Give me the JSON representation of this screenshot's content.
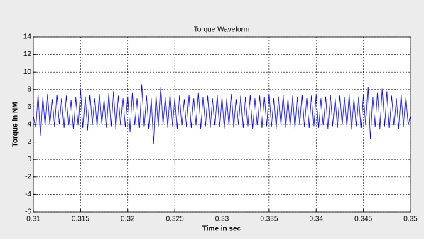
{
  "chart_data": {
    "type": "line",
    "title": "Torque Waveform",
    "x_label": "Time in sec",
    "y_label": "Torque in NM",
    "x": [
      0.31,
      0.31025,
      0.3105,
      0.31075,
      0.311,
      0.31125,
      0.3115,
      0.31175,
      0.312,
      0.31225,
      0.3125,
      0.31275,
      0.313,
      0.31325,
      0.3135,
      0.31375,
      0.314,
      0.31425,
      0.3145,
      0.31475,
      0.315,
      0.31525,
      0.3155,
      0.31575,
      0.316,
      0.31625,
      0.3165,
      0.31675,
      0.317,
      0.31725,
      0.3175,
      0.31775,
      0.318,
      0.31825,
      0.3185,
      0.31875,
      0.319,
      0.31925,
      0.3195,
      0.31975,
      0.32,
      0.32025,
      0.3205,
      0.32075,
      0.321,
      0.32125,
      0.3215,
      0.32175,
      0.322,
      0.32225,
      0.3225,
      0.32275,
      0.323,
      0.32325,
      0.3235,
      0.32375,
      0.324,
      0.32425,
      0.3245,
      0.32475,
      0.325,
      0.32525,
      0.3255,
      0.32575,
      0.326,
      0.32625,
      0.3265,
      0.32675,
      0.327,
      0.32725,
      0.3275,
      0.32775,
      0.328,
      0.32825,
      0.3285,
      0.32875,
      0.329,
      0.32925,
      0.3295,
      0.32975,
      0.33,
      0.33025,
      0.3305,
      0.33075,
      0.331,
      0.33125,
      0.3315,
      0.33175,
      0.332,
      0.33225,
      0.3325,
      0.33275,
      0.333,
      0.33325,
      0.3335,
      0.33375,
      0.334,
      0.33425,
      0.3345,
      0.33475,
      0.335,
      0.33525,
      0.3355,
      0.33575,
      0.336,
      0.33625,
      0.3365,
      0.33675,
      0.337,
      0.33725,
      0.3375,
      0.33775,
      0.338,
      0.33825,
      0.3385,
      0.33875,
      0.339,
      0.33925,
      0.3395,
      0.33975,
      0.34,
      0.34025,
      0.3405,
      0.34075,
      0.341,
      0.34125,
      0.3415,
      0.34175,
      0.342,
      0.34225,
      0.3425,
      0.34275,
      0.343,
      0.34325,
      0.3435,
      0.34375,
      0.344,
      0.34425,
      0.3445,
      0.34475,
      0.345,
      0.34525,
      0.3455,
      0.34575,
      0.346,
      0.34625,
      0.3465,
      0.34675,
      0.347,
      0.34725,
      0.3475,
      0.34775,
      0.348,
      0.34825,
      0.3485,
      0.34875,
      0.349,
      0.34925,
      0.3495,
      0.34975,
      0.35
    ],
    "series": [
      {
        "color": "#0000ff",
        "values": [
          5.0,
          3.6,
          7.6,
          2.7,
          7.2,
          3.8,
          7.5,
          3.9,
          6.9,
          3.7,
          7.4,
          4.0,
          7.0,
          3.6,
          7.3,
          3.9,
          6.8,
          3.5,
          7.1,
          3.9,
          8.0,
          3.6,
          7.2,
          3.3,
          7.4,
          3.9,
          7.0,
          3.7,
          7.5,
          4.0,
          6.9,
          3.6,
          7.6,
          3.8,
          7.8,
          3.5,
          7.3,
          3.9,
          7.0,
          3.7,
          7.2,
          3.1,
          7.6,
          3.9,
          7.0,
          3.6,
          8.6,
          3.8,
          7.3,
          3.5,
          7.0,
          1.8,
          7.4,
          3.7,
          8.3,
          3.9,
          7.1,
          3.6,
          7.5,
          3.8,
          7.0,
          3.5,
          7.3,
          3.9,
          6.9,
          3.7,
          7.4,
          3.6,
          7.0,
          3.9,
          7.6,
          3.5,
          7.1,
          3.8,
          7.3,
          3.6,
          7.0,
          3.9,
          7.4,
          3.7,
          7.2,
          3.5,
          7.0,
          3.8,
          7.5,
          3.6,
          6.9,
          3.9,
          7.3,
          3.6,
          7.1,
          3.8,
          7.4,
          3.5,
          7.0,
          3.9,
          7.3,
          3.6,
          7.1,
          3.8,
          7.5,
          3.7,
          7.0,
          3.5,
          7.2,
          3.9,
          7.4,
          3.6,
          7.0,
          3.8,
          7.3,
          3.5,
          7.1,
          3.9,
          7.4,
          3.7,
          7.0,
          3.6,
          7.3,
          3.8,
          7.5,
          3.6,
          7.0,
          3.9,
          7.2,
          3.5,
          7.4,
          3.8,
          7.0,
          3.6,
          7.3,
          3.9,
          7.1,
          3.7,
          7.5,
          3.4,
          7.0,
          3.8,
          7.2,
          3.6,
          7.4,
          3.9,
          8.3,
          2.3,
          7.1,
          3.7,
          7.6,
          3.5,
          8.1,
          3.8,
          7.8,
          3.6,
          7.3,
          3.9,
          7.0,
          3.5,
          7.5,
          3.7,
          7.2,
          3.9,
          5.0
        ]
      }
    ],
    "xlim": [
      0.31,
      0.35
    ],
    "ylim": [
      -6,
      14
    ],
    "xticks": [
      0.31,
      0.315,
      0.32,
      0.325,
      0.33,
      0.335,
      0.34,
      0.345,
      0.35
    ],
    "yticks": [
      -6,
      -4,
      -2,
      0,
      2,
      4,
      6,
      8,
      10,
      12,
      14
    ],
    "grid": true
  }
}
